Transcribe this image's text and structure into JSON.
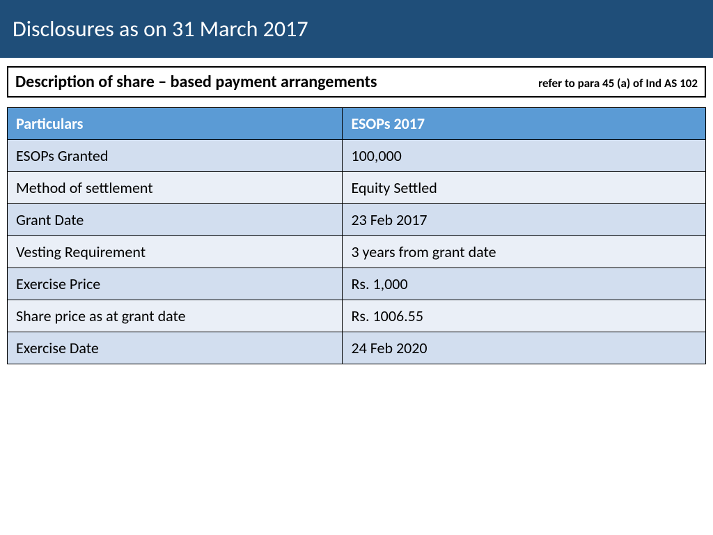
{
  "title": "Disclosures as on 31 March 2017",
  "subtitle": "Description of share – based payment arrangements",
  "reference": "refer to para 45 (a) of Ind AS 102",
  "table": {
    "columns": [
      "Particulars",
      "ESOPs 2017"
    ],
    "rows": [
      [
        "ESOPs Granted",
        "100,000"
      ],
      [
        "Method of settlement",
        "Equity Settled"
      ],
      [
        "Grant Date",
        "23 Feb 2017"
      ],
      [
        "Vesting Requirement",
        "3 years from grant date"
      ],
      [
        "Exercise Price",
        "Rs. 1,000"
      ],
      [
        "Share price as at grant date",
        "Rs. 1006.55"
      ],
      [
        "Exercise Date",
        "24 Feb 2020"
      ]
    ]
  },
  "styling": {
    "title_bg": "#1f4e79",
    "title_color": "#ffffff",
    "title_fontsize": 32,
    "subtitle_fontsize": 24,
    "reference_fontsize": 17,
    "header_bg": "#5b9bd5",
    "header_color": "#ffffff",
    "row_odd_bg": "#d2deef",
    "row_even_bg": "#eaeff7",
    "border_color": "#000000",
    "cell_fontsize": 22,
    "page_bg": "#ffffff"
  }
}
